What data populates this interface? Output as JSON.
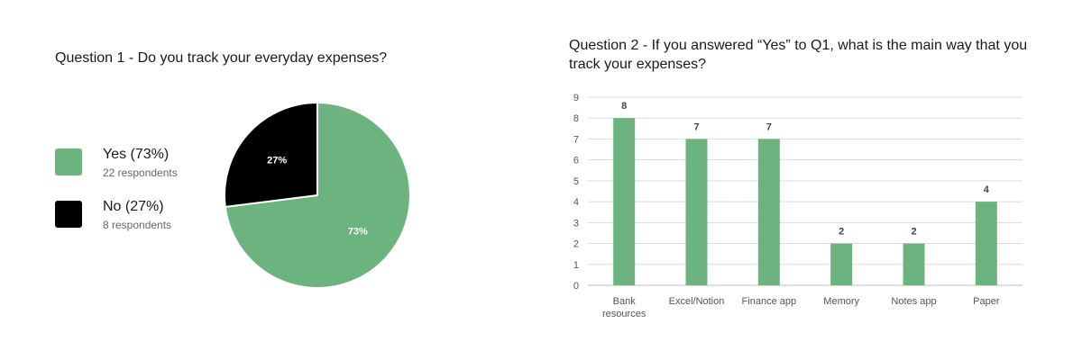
{
  "q1": {
    "title": "Question 1 - Do you track your everyday expenses?",
    "legend": [
      {
        "label": "Yes (73%)",
        "sub": "22 respondents",
        "color": "#6db37f"
      },
      {
        "label": "No (27%)",
        "sub": "8 respondents",
        "color": "#000000"
      }
    ]
  },
  "q2": {
    "title": "Question 2 - If you answered “Yes” to Q1, what is the main way that you track your expenses?"
  },
  "chart_data": [
    {
      "type": "pie",
      "categories": [
        "Yes",
        "No"
      ],
      "values": [
        73,
        27
      ],
      "labels": [
        "73%",
        "27%"
      ],
      "colors": [
        "#6db37f",
        "#000000"
      ],
      "title": "Question 1 - Do you track your everyday expenses?",
      "legend": "left"
    },
    {
      "type": "bar",
      "categories": [
        "Bank resources",
        "Excel/Notion",
        "Finance app",
        "Memory",
        "Notes app",
        "Paper"
      ],
      "values": [
        8,
        7,
        7,
        2,
        2,
        4
      ],
      "title": "Question 2 - If you answered “Yes” to Q1, what is the main way that you track your expenses?",
      "xlabel": "",
      "ylabel": "",
      "ylim": [
        0,
        9
      ],
      "yticks": [
        0,
        1,
        2,
        3,
        4,
        5,
        6,
        7,
        8,
        9
      ],
      "grid": true,
      "color": "#6db37f"
    }
  ]
}
